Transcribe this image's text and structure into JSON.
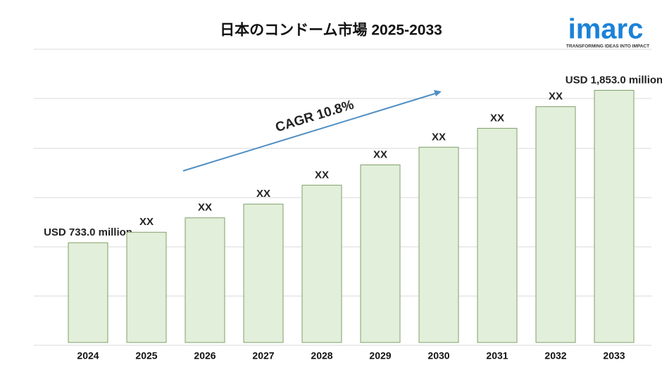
{
  "chart_data": {
    "type": "bar",
    "title": "日本のコンドーム市場 2025-2033",
    "categories": [
      "2024",
      "2025",
      "2026",
      "2027",
      "2028",
      "2029",
      "2030",
      "2031",
      "2032",
      "2033"
    ],
    "values": [
      733.0,
      810,
      916,
      1017,
      1156,
      1305,
      1435,
      1574,
      1733,
      1853.0
    ],
    "value_labels": [
      "USD 733.0 million",
      "XX",
      "XX",
      "XX",
      "XX",
      "XX",
      "XX",
      "XX",
      "XX",
      "USD 1,853.0 million"
    ],
    "color": "#e2efda",
    "ylim": [
      0,
      2000
    ],
    "annotation": "CAGR 10.8%",
    "logo": {
      "name": "imarc",
      "tagline": "TRANSFORMING IDEAS INTO IMPACT"
    }
  }
}
